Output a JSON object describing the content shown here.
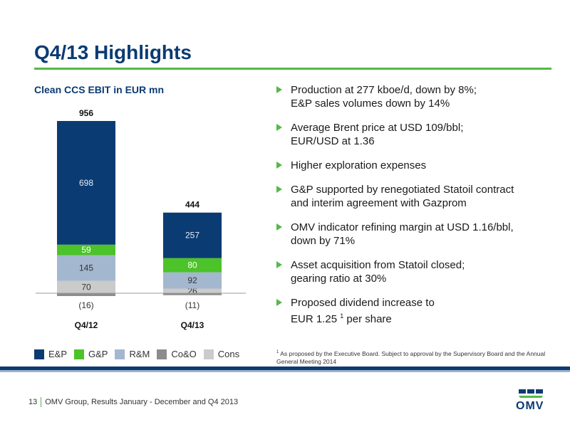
{
  "page": {
    "title": "Q4/13 Highlights",
    "chart_heading": "Clean CCS EBIT in EUR mn"
  },
  "chart_data": {
    "type": "bar",
    "stacked": true,
    "categories": [
      "Q4/12",
      "Q4/13"
    ],
    "series": [
      {
        "name": "E&P",
        "color": "#0b3b73",
        "values": [
          698,
          257
        ]
      },
      {
        "name": "G&P",
        "color": "#4cc329",
        "values": [
          59,
          80
        ]
      },
      {
        "name": "R&M",
        "color": "#a3b7cf",
        "values": [
          145,
          92
        ]
      },
      {
        "name": "Co&O",
        "color": "#8c8c8c",
        "values": [
          -16,
          -11
        ]
      },
      {
        "name": "Cons",
        "color": "#cbcbcb",
        "values": [
          70,
          26
        ]
      }
    ],
    "totals": [
      956,
      444
    ],
    "value_labels": {
      "Q4/12": [
        "698",
        "59",
        "145",
        "(16)",
        "70"
      ],
      "Q4/13": [
        "257",
        "80",
        "92",
        "(11)",
        "26"
      ]
    },
    "total_labels": [
      "956",
      "444"
    ],
    "ylim": [
      -16,
      970
    ]
  },
  "bullets": [
    {
      "lines": [
        "Production at 277 kboe/d, down by 8%;",
        "E&P sales volumes down by 14%"
      ]
    },
    {
      "lines": [
        "Average Brent price at USD 109/bbl;",
        "EUR/USD at 1.36"
      ]
    },
    {
      "lines": [
        "Higher exploration expenses"
      ]
    },
    {
      "lines": [
        "G&P supported by renegotiated Statoil contract",
        "and interim agreement with Gazprom"
      ]
    },
    {
      "lines": [
        "OMV indicator refining margin at USD 1.16/bbl,",
        "down by 71%"
      ]
    },
    {
      "lines": [
        "Asset acquisition from Statoil closed;",
        "gearing ratio at 30%"
      ]
    },
    {
      "lines": [
        "Proposed dividend increase to",
        "EUR 1.25"
      ],
      "sup": "1",
      "tail": " per share"
    }
  ],
  "footnote": {
    "sup": "1",
    "text": "As proposed by the Executive Board. Subject to approval by the Supervisory Board and the Annual General Meeting 2014"
  },
  "footer": {
    "page_number": "13",
    "text": "OMV Group, Results January - December and Q4 2013"
  },
  "logo": {
    "text": "OMV"
  },
  "colors": {
    "brand_blue": "#0b3b73",
    "brand_green": "#54b948"
  }
}
